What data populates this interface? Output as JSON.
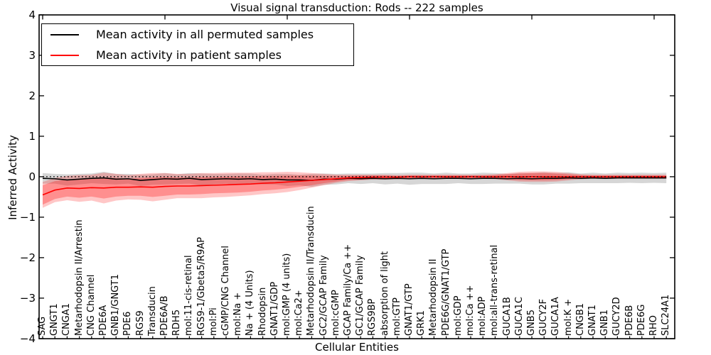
{
  "chart_data": {
    "type": "line",
    "title": "Visual signal transduction: Rods -- 222 samples",
    "xlabel": "Cellular Entities",
    "ylabel": "Inferred Activity",
    "ylim": [
      -4,
      4
    ],
    "yticks": [
      4,
      3,
      2,
      1,
      0,
      -1,
      -2,
      -3,
      -4
    ],
    "zero_reference_line": "dotted black line at y=0",
    "legend_position": "upper left",
    "grid": false,
    "categories": [
      "SAG",
      "GNGT1",
      "CNGA1",
      "Metarhodopsin II/Arrestin",
      "CNG Channel",
      "PDE6A",
      "GNB1/GNGT1",
      "PDE6",
      "RGS9",
      "Transducin",
      "PDE6A/B",
      "RDH5",
      "mol:11-cis-retinal",
      "RGS9-1/Gbeta5/R9AP",
      "mol:Pi",
      "cGMP/CNG Channel",
      "mol:Na +",
      "Na + (4 Units)",
      "Rhodopsin",
      "GNAT1/GDP",
      "mol:GMP (4 units)",
      "mol:Ca2+",
      "Metarhodopsin II/Transducin",
      "GC2/GCAP Family",
      "mol:cGMP",
      "GCAP Family/Ca ++",
      "GC1/GCAP Family",
      "RGS9BP",
      "absorption of light",
      "mol:GTP",
      "GNAT1/GTP",
      "GRK1",
      "Metarhodopsin II",
      "PDE6G/GNAT1/GTP",
      "mol:GDP",
      "mol:Ca ++",
      "mol:ADP",
      "mol:all-trans-retinal",
      "GUCA1B",
      "GUCA1C",
      "GNB5",
      "GUCY2F",
      "GUCA1A",
      "mol:K +",
      "CNGB1",
      "GNAT1",
      "GNB1",
      "GUCY2D",
      "PDE6B",
      "PDE6G",
      "RHO",
      "SLC24A1"
    ],
    "series": [
      {
        "name": "Mean activity in all permuted samples",
        "color": "#000000",
        "band_color": "#000000",
        "band_opacity": 0.16,
        "values": [
          -0.04,
          -0.05,
          -0.08,
          -0.06,
          -0.04,
          -0.03,
          -0.06,
          -0.05,
          -0.09,
          -0.07,
          -0.05,
          -0.06,
          -0.04,
          -0.07,
          -0.06,
          -0.05,
          -0.06,
          -0.05,
          -0.07,
          -0.06,
          -0.08,
          -0.08,
          -0.09,
          -0.06,
          -0.06,
          -0.04,
          -0.05,
          -0.04,
          -0.05,
          -0.04,
          -0.05,
          -0.04,
          -0.05,
          -0.04,
          -0.04,
          -0.05,
          -0.04,
          -0.04,
          -0.05,
          -0.04,
          -0.05,
          -0.04,
          -0.04,
          -0.03,
          -0.04,
          -0.03,
          -0.04,
          -0.03,
          -0.03,
          -0.03,
          -0.03,
          -0.03
        ],
        "band_halfwidth": [
          0.13,
          0.12,
          0.14,
          0.13,
          0.12,
          0.15,
          0.13,
          0.12,
          0.14,
          0.13,
          0.14,
          0.12,
          0.13,
          0.15,
          0.13,
          0.12,
          0.14,
          0.13,
          0.12,
          0.13,
          0.15,
          0.13,
          0.16,
          0.14,
          0.13,
          0.12,
          0.13,
          0.12,
          0.14,
          0.13,
          0.15,
          0.14,
          0.13,
          0.14,
          0.12,
          0.13,
          0.14,
          0.13,
          0.12,
          0.13,
          0.14,
          0.15,
          0.13,
          0.14,
          0.12,
          0.13,
          0.12,
          0.13,
          0.12,
          0.13,
          0.12,
          0.13
        ]
      },
      {
        "name": "Mean activity in patient samples",
        "color": "#ff0000",
        "band_color": "#ff0000",
        "band_opacity": 0.25,
        "values": [
          -0.45,
          -0.33,
          -0.28,
          -0.29,
          -0.27,
          -0.28,
          -0.26,
          -0.26,
          -0.25,
          -0.26,
          -0.24,
          -0.23,
          -0.23,
          -0.22,
          -0.21,
          -0.2,
          -0.19,
          -0.18,
          -0.16,
          -0.15,
          -0.13,
          -0.11,
          -0.09,
          -0.07,
          -0.05,
          -0.03,
          -0.02,
          -0.01,
          -0.01,
          -0.01,
          0,
          0,
          0,
          0,
          0,
          0,
          0,
          0,
          0,
          0,
          0,
          0,
          0,
          0,
          0,
          0,
          0,
          0,
          0,
          0,
          0,
          0
        ],
        "band_inner_halfwidth": [
          0.24,
          0.22,
          0.21,
          0.23,
          0.22,
          0.26,
          0.23,
          0.21,
          0.22,
          0.24,
          0.23,
          0.21,
          0.21,
          0.21,
          0.2,
          0.2,
          0.2,
          0.19,
          0.18,
          0.17,
          0.16,
          0.14,
          0.12,
          0.09,
          0.07,
          0.05,
          0.05,
          0.04,
          0.04,
          0.03,
          0.03,
          0.03,
          0.03,
          0.03,
          0.03,
          0.03,
          0.03,
          0.04,
          0.06,
          0.08,
          0.09,
          0.09,
          0.08,
          0.06,
          0.04,
          0.03,
          0.03,
          0.03,
          0.03,
          0.03,
          0.03,
          0.03
        ],
        "band_outer_halfwidth": [
          0.32,
          0.3,
          0.3,
          0.33,
          0.32,
          0.38,
          0.33,
          0.3,
          0.32,
          0.35,
          0.33,
          0.3,
          0.3,
          0.31,
          0.3,
          0.3,
          0.29,
          0.28,
          0.27,
          0.26,
          0.25,
          0.22,
          0.18,
          0.14,
          0.1,
          0.08,
          0.07,
          0.06,
          0.06,
          0.05,
          0.05,
          0.05,
          0.05,
          0.05,
          0.05,
          0.05,
          0.05,
          0.06,
          0.09,
          0.12,
          0.13,
          0.13,
          0.12,
          0.09,
          0.06,
          0.05,
          0.05,
          0.05,
          0.05,
          0.05,
          0.05,
          0.05
        ]
      }
    ]
  }
}
